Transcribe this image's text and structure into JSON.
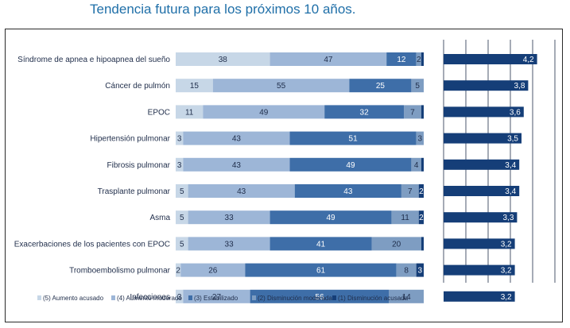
{
  "page": {
    "title": "Tendencia futura para los próximos 10 años."
  },
  "colors": {
    "c5": "#c7d7e7",
    "c4": "#9db6d7",
    "c3": "#3e6ea8",
    "c2": "#7e9dc2",
    "c1": "#153e78",
    "label_dark": "#ffffff",
    "label_light": "#1f2d4a",
    "mean_bar": "#153e78",
    "grid": "#1f2d4a"
  },
  "chart_data": [
    {
      "type": "bar",
      "stacked": true,
      "orientation": "horizontal",
      "categories": [
        "Síndrome de apnea e hipoapnea del sueño",
        "Cáncer de pulmón",
        "EPOC",
        "Hipertensión pulmonar",
        "Fibrosis pulmonar",
        "Trasplante pulmonar",
        "Asma",
        "Exacerbaciones de los pacientes con EPOC",
        "Tromboembolismo pulmonar",
        "Infecciones"
      ],
      "series": [
        {
          "name": "(5) Aumento acusado",
          "color_key": "c5",
          "values": [
            38,
            15,
            11,
            3,
            3,
            5,
            5,
            5,
            2,
            3
          ]
        },
        {
          "name": "(4) Aumento moderado",
          "color_key": "c4",
          "values": [
            47,
            55,
            49,
            43,
            43,
            43,
            33,
            33,
            26,
            27
          ]
        },
        {
          "name": "(3) Estabilizado",
          "color_key": "c3",
          "values": [
            12,
            25,
            32,
            51,
            49,
            43,
            49,
            41,
            61,
            56
          ]
        },
        {
          "name": "(2) Disminución moderada",
          "color_key": "c2",
          "values": [
            2,
            5,
            7,
            3,
            4,
            7,
            11,
            20,
            8,
            14
          ]
        },
        {
          "name": "(1) Disminución acusada",
          "color_key": "c1",
          "values": [
            1,
            0,
            1,
            0,
            1,
            2,
            2,
            1,
            3,
            0
          ]
        }
      ],
      "labels": [
        [
          "38",
          "47",
          "12",
          "2",
          ""
        ],
        [
          "15",
          "55",
          "25",
          "5",
          ""
        ],
        [
          "11",
          "49",
          "32",
          "7",
          ""
        ],
        [
          "3",
          "43",
          "51",
          "3",
          ""
        ],
        [
          "3",
          "43",
          "49",
          "4",
          ""
        ],
        [
          "5",
          "43",
          "43",
          "7",
          "2"
        ],
        [
          "5",
          "33",
          "49",
          "11",
          "2"
        ],
        [
          "5",
          "33",
          "41",
          "20",
          ""
        ],
        [
          "2",
          "26",
          "61",
          "8",
          "3"
        ],
        [
          "3",
          "27",
          "56",
          "14",
          ""
        ]
      ],
      "xlim": [
        0,
        100
      ],
      "legend_position": "bottom"
    },
    {
      "type": "bar",
      "orientation": "horizontal",
      "categories": [
        "Síndrome de apnea e hipoapnea del sueño",
        "Cáncer de pulmón",
        "EPOC",
        "Hipertensión pulmonar",
        "Fibrosis pulmonar",
        "Trasplante pulmonar",
        "Asma",
        "Exacerbaciones de los pacientes con EPOC",
        "Tromboembolismo pulmonar",
        "Infecciones"
      ],
      "values": [
        4.2,
        3.8,
        3.6,
        3.5,
        3.4,
        3.4,
        3.3,
        3.2,
        3.2,
        3.2
      ],
      "value_labels": [
        "4,2",
        "3,8",
        "3,6",
        "3,5",
        "3,4",
        "3,4",
        "3,3",
        "3,2",
        "3,2",
        "3,2"
      ],
      "xlim": [
        0,
        5
      ],
      "grid": true
    }
  ]
}
